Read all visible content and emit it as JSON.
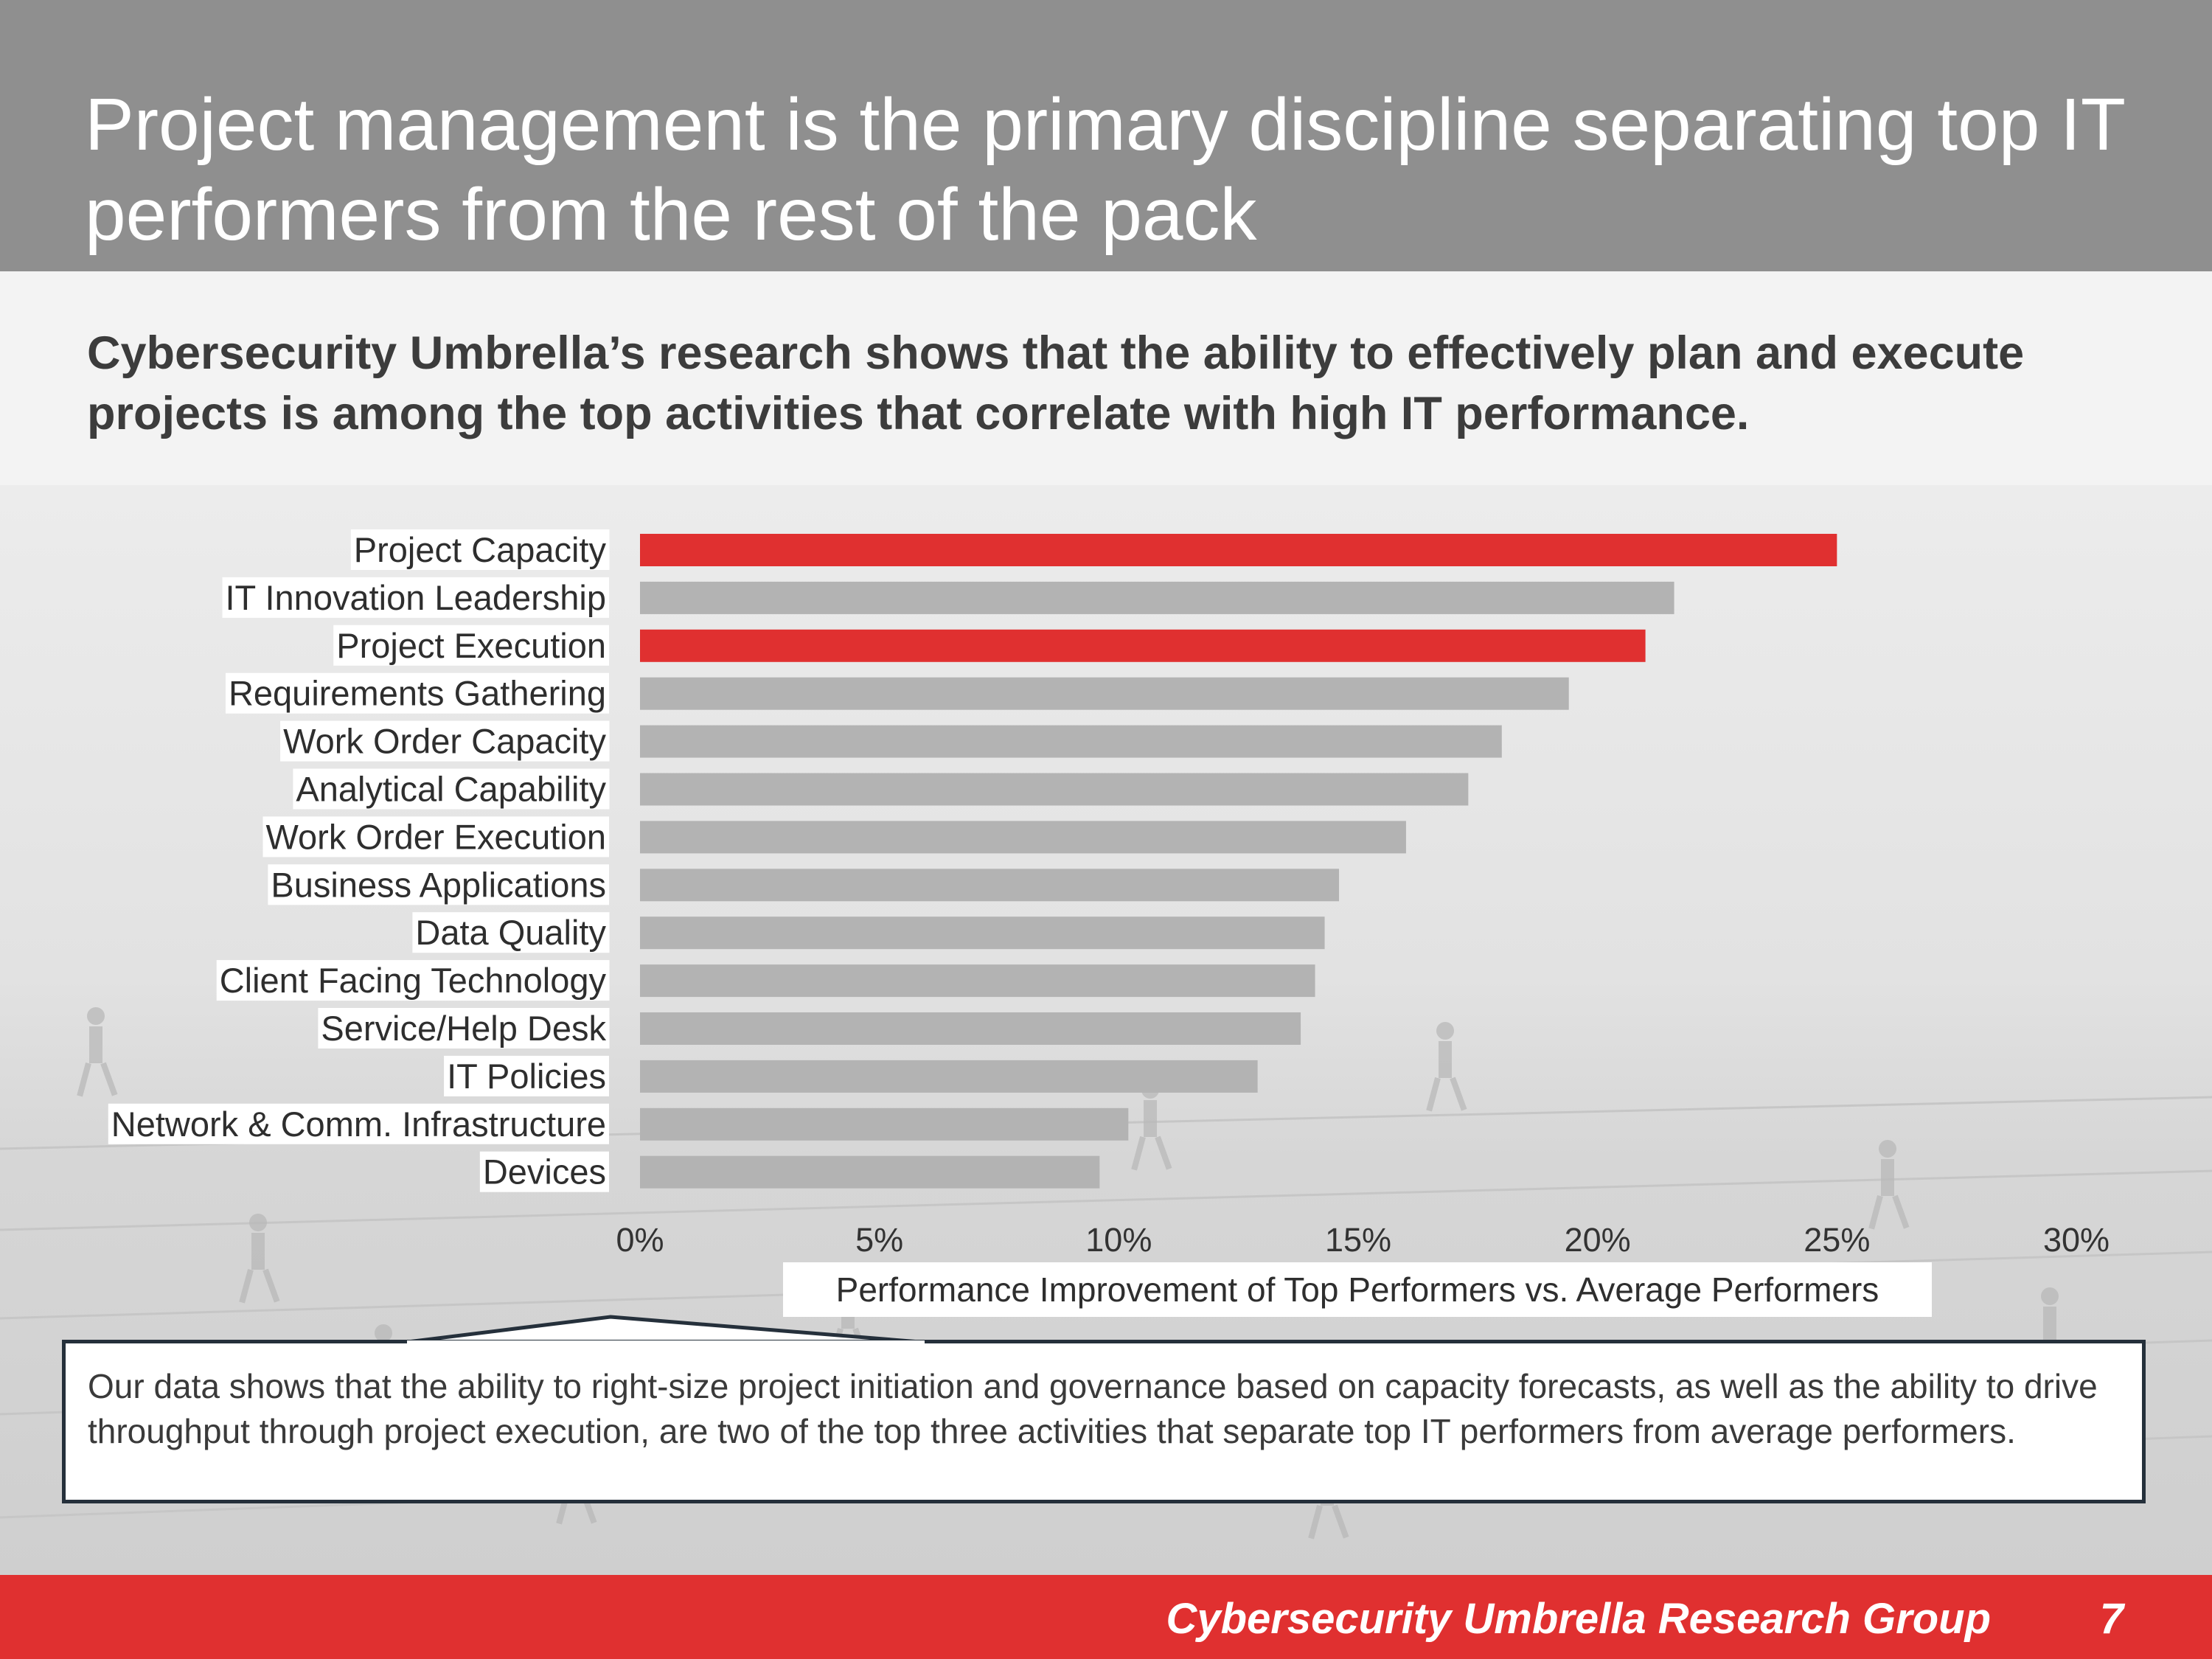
{
  "slide": {
    "title": "Project management is the primary discipline separating top IT performers from the rest of the pack",
    "subtitle": "Cybersecurity Umbrella’s research shows that the ability to effectively plan and execute projects is among the top activities that correlate with high IT performance.",
    "callout": "Our data shows that the ability to right-size project initiation and governance based on capacity forecasts, as well as the ability to drive throughput through project execution, are two of the top three activities that separate top IT performers from average performers.",
    "footer_org": "Cybersecurity Umbrella Research Group",
    "page_number": "7"
  },
  "colors": {
    "highlight": "#e03030",
    "bar": "#b3b3b3",
    "header": "#8f8f8f"
  },
  "chart_data": {
    "type": "bar",
    "orientation": "horizontal",
    "categories": [
      "Project Capacity",
      "IT Innovation Leadership",
      "Project Execution",
      "Requirements Gathering",
      "Work Order Capacity",
      "Analytical Capability",
      "Work Order Execution",
      "Business Applications",
      "Data Quality",
      "Client Facing Technology",
      "Service/Help Desk",
      "IT Policies",
      "Network & Comm. Infrastructure",
      "Devices"
    ],
    "values": [
      25.0,
      21.6,
      21.0,
      19.4,
      18.0,
      17.3,
      16.0,
      14.6,
      14.3,
      14.1,
      13.8,
      12.9,
      10.2,
      9.6
    ],
    "highlighted": [
      "Project Capacity",
      "Project Execution"
    ],
    "xlim": [
      0,
      30
    ],
    "xticks": [
      "0%",
      "5%",
      "10%",
      "15%",
      "20%",
      "25%",
      "30%"
    ],
    "xlabel": "Performance Improvement of Top Performers vs. Average Performers",
    "grid": false,
    "legend": "none"
  }
}
